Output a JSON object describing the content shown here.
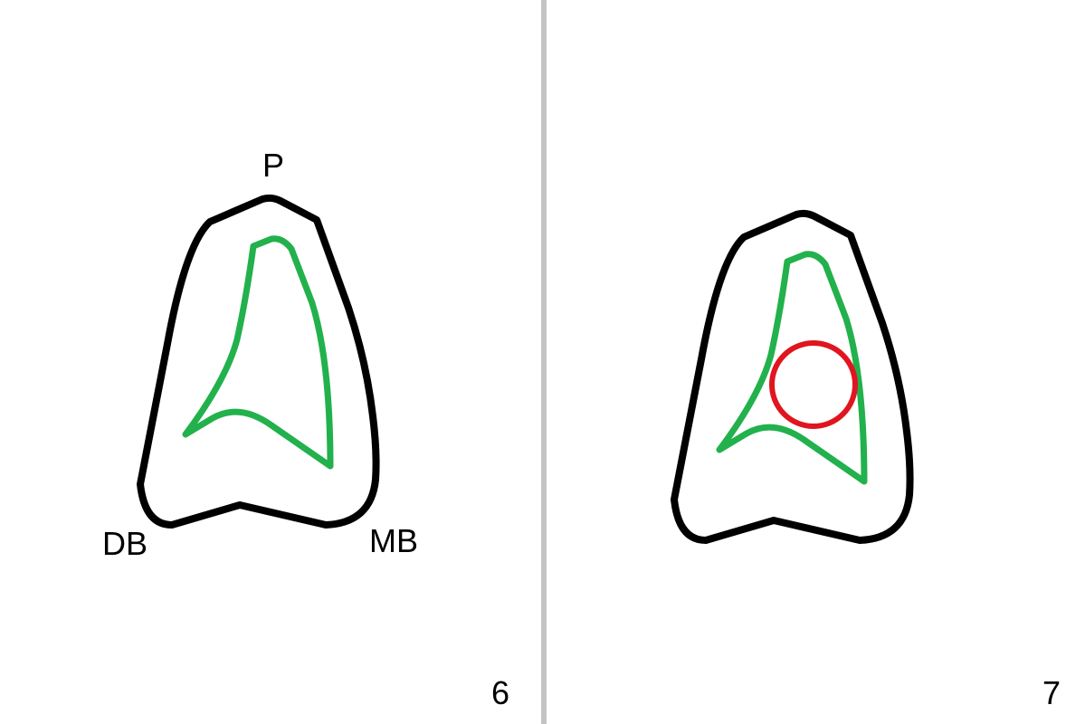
{
  "left_panel": {
    "label_top": "P",
    "label_bottom_left": "DB",
    "label_bottom_right": "MB",
    "panel_number": "6"
  },
  "right_panel": {
    "panel_number": "7"
  },
  "colors": {
    "outline": "#000000",
    "canal": "#22b14c",
    "highlight": "#e0151f",
    "divider": "#c3c3c3"
  }
}
